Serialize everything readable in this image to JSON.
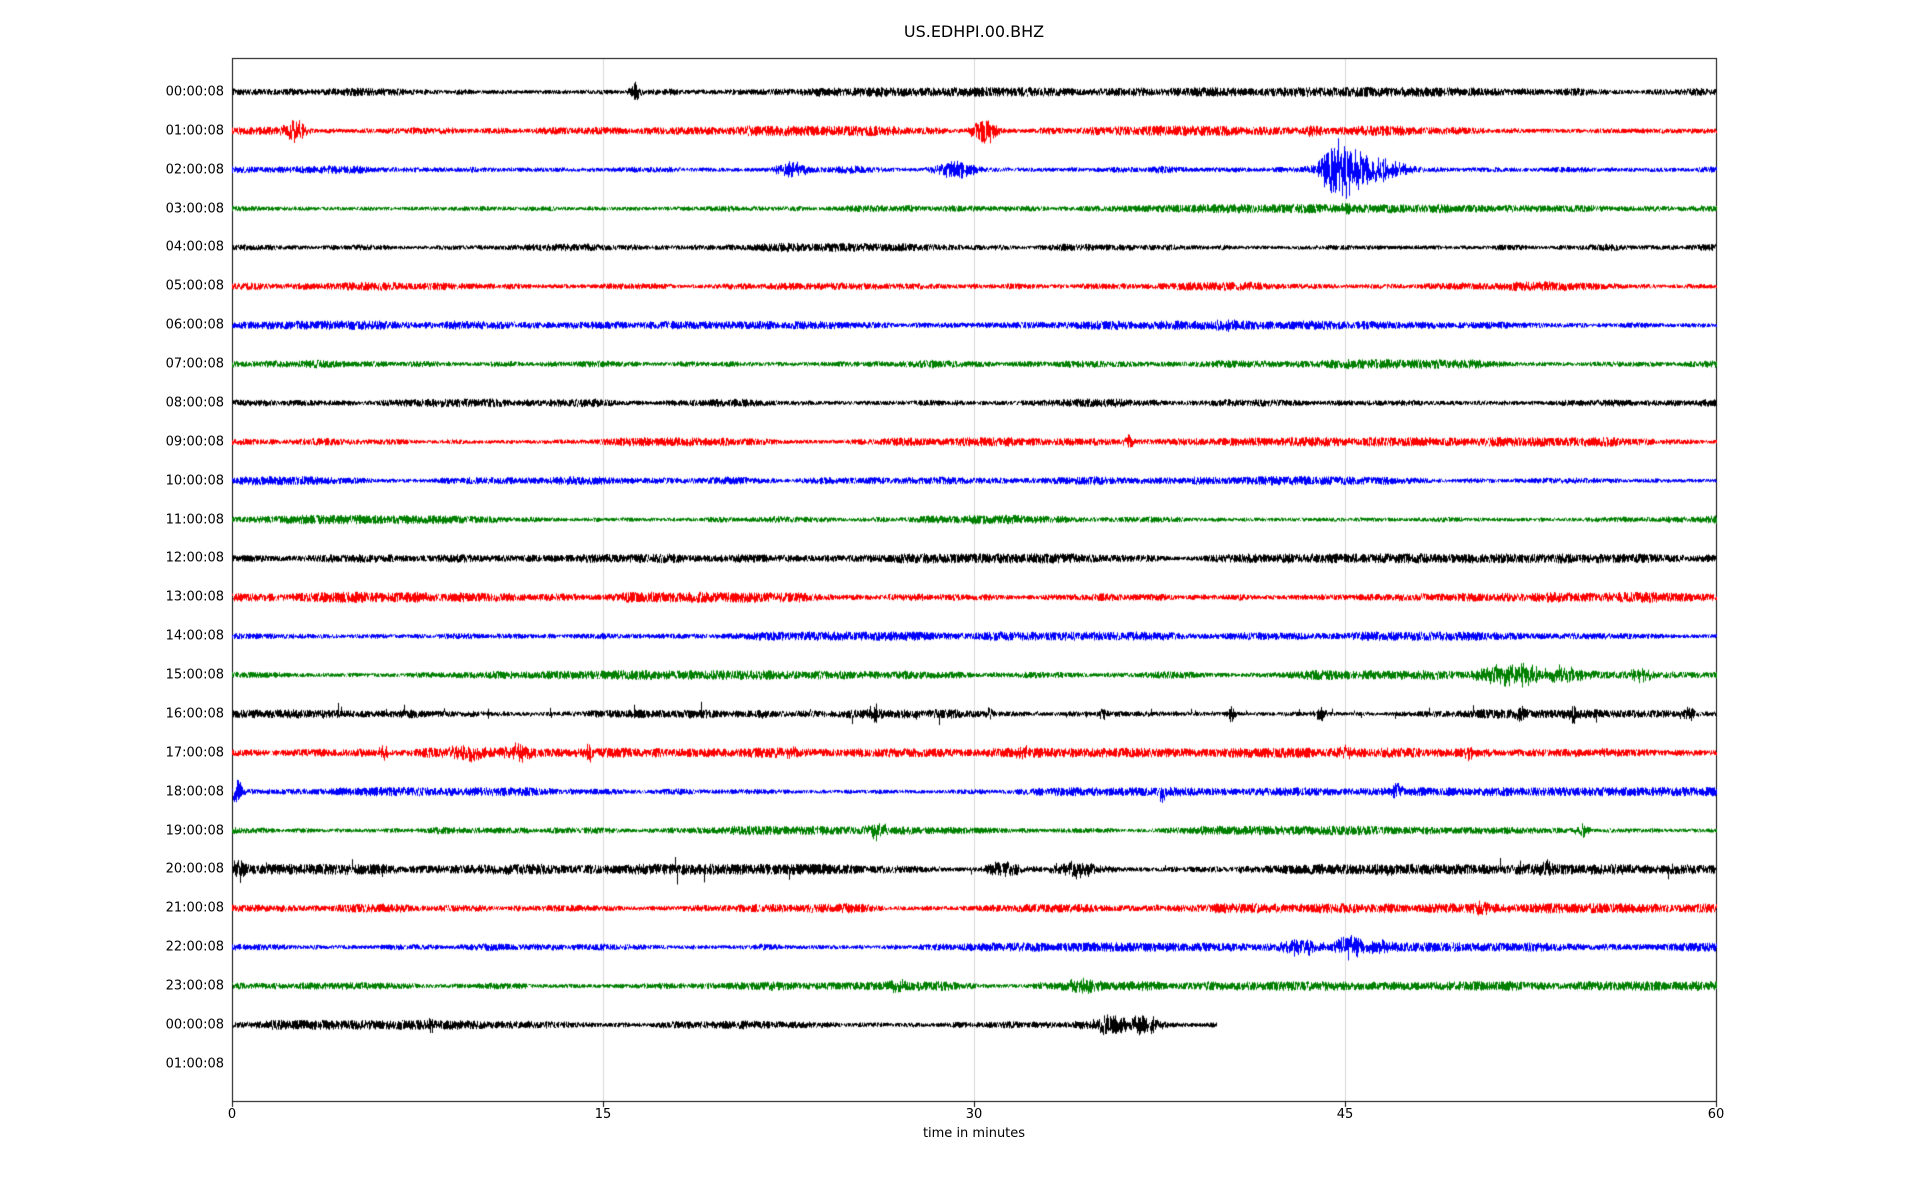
{
  "chart_data": {
    "type": "line",
    "subtype": "seismogram-helicorder",
    "title": "US.EDHPI.00.BHZ",
    "xlabel": "time in minutes",
    "xlim": [
      0,
      60
    ],
    "xticks": [
      0,
      15,
      30,
      45,
      60
    ],
    "grid": "vertical-light",
    "frame_color": "#000000",
    "grid_color": "#d9d9d9",
    "trace_color_cycle": [
      "#000000",
      "#ff0000",
      "#0000ff",
      "#008000"
    ],
    "rows": [
      {
        "label": "00:00:08",
        "color": "#000000",
        "noise": 3.4,
        "duration": 60,
        "spike_rate": 0,
        "events": [
          {
            "t": 16.3,
            "amp": 9,
            "dur": 0.25
          }
        ]
      },
      {
        "label": "01:00:08",
        "color": "#ff0000",
        "noise": 3.6,
        "duration": 60,
        "spike_rate": 0,
        "events": [
          {
            "t": 2.5,
            "amp": 9,
            "dur": 0.5
          },
          {
            "t": 30.4,
            "amp": 13,
            "dur": 0.5
          },
          {
            "t": 43.7,
            "amp": 5,
            "dur": 0.3
          }
        ]
      },
      {
        "label": "02:00:08",
        "color": "#0000ff",
        "noise": 3.4,
        "duration": 60,
        "spike_rate": 0,
        "events": [
          {
            "t": 22.6,
            "amp": 7,
            "dur": 0.6
          },
          {
            "t": 29.3,
            "amp": 8,
            "dur": 0.9
          },
          {
            "t": 44.7,
            "amp": 26,
            "dur": 0.7
          },
          {
            "t": 45.6,
            "amp": 16,
            "dur": 1.1
          },
          {
            "t": 47.0,
            "amp": 6,
            "dur": 0.8
          }
        ]
      },
      {
        "label": "03:00:08",
        "color": "#008000",
        "noise": 3.2,
        "duration": 60,
        "spike_rate": 0,
        "events": [
          {
            "t": 45.1,
            "amp": 4,
            "dur": 0.3
          }
        ]
      },
      {
        "label": "04:00:08",
        "color": "#000000",
        "noise": 3.2,
        "duration": 60,
        "spike_rate": 0,
        "events": []
      },
      {
        "label": "05:00:08",
        "color": "#ff0000",
        "noise": 3.4,
        "duration": 60,
        "spike_rate": 0,
        "events": []
      },
      {
        "label": "06:00:08",
        "color": "#0000ff",
        "noise": 3.2,
        "duration": 60,
        "spike_rate": 0,
        "events": [
          {
            "t": 40.0,
            "amp": 4,
            "dur": 0.5
          }
        ]
      },
      {
        "label": "07:00:08",
        "color": "#008000",
        "noise": 3.4,
        "duration": 60,
        "spike_rate": 0,
        "events": []
      },
      {
        "label": "08:00:08",
        "color": "#000000",
        "noise": 3.6,
        "duration": 60,
        "spike_rate": 0,
        "events": []
      },
      {
        "label": "09:00:08",
        "color": "#ff0000",
        "noise": 3.3,
        "duration": 60,
        "spike_rate": 0,
        "events": [
          {
            "t": 36.3,
            "amp": 8,
            "dur": 0.2
          }
        ]
      },
      {
        "label": "10:00:08",
        "color": "#0000ff",
        "noise": 3.2,
        "duration": 60,
        "spike_rate": 0,
        "events": []
      },
      {
        "label": "11:00:08",
        "color": "#008000",
        "noise": 3.2,
        "duration": 60,
        "spike_rate": 0,
        "events": []
      },
      {
        "label": "12:00:08",
        "color": "#000000",
        "noise": 3.4,
        "duration": 60,
        "spike_rate": 0,
        "events": []
      },
      {
        "label": "13:00:08",
        "color": "#ff0000",
        "noise": 3.8,
        "duration": 60,
        "spike_rate": 0,
        "events": []
      },
      {
        "label": "14:00:08",
        "color": "#0000ff",
        "noise": 3.2,
        "duration": 60,
        "spike_rate": 0,
        "events": []
      },
      {
        "label": "15:00:08",
        "color": "#008000",
        "noise": 3.4,
        "duration": 60,
        "spike_rate": 0,
        "events": [
          {
            "t": 51.3,
            "amp": 9,
            "dur": 0.9
          },
          {
            "t": 52.3,
            "amp": 8,
            "dur": 0.7
          },
          {
            "t": 53.8,
            "amp": 6,
            "dur": 0.8
          },
          {
            "t": 57.0,
            "amp": 5,
            "dur": 0.5
          }
        ]
      },
      {
        "label": "16:00:08",
        "color": "#000000",
        "noise": 3.3,
        "duration": 60,
        "spike_rate": 0.012,
        "events": [
          {
            "t": 26.0,
            "amp": 7,
            "dur": 0.15
          },
          {
            "t": 30.6,
            "amp": 5,
            "dur": 0.15
          },
          {
            "t": 35.2,
            "amp": 5,
            "dur": 0.15
          },
          {
            "t": 40.4,
            "amp": 9,
            "dur": 0.12
          },
          {
            "t": 44.0,
            "amp": 6,
            "dur": 0.2
          },
          {
            "t": 52.1,
            "amp": 9,
            "dur": 0.15
          },
          {
            "t": 54.2,
            "amp": 8,
            "dur": 0.15
          },
          {
            "t": 58.9,
            "amp": 8,
            "dur": 0.3
          }
        ]
      },
      {
        "label": "17:00:08",
        "color": "#ff0000",
        "noise": 3.5,
        "duration": 60,
        "spike_rate": 0,
        "events": [
          {
            "t": 6.1,
            "amp": 6,
            "dur": 0.2
          },
          {
            "t": 9.6,
            "amp": 6,
            "dur": 0.7
          },
          {
            "t": 11.6,
            "amp": 7,
            "dur": 0.5
          },
          {
            "t": 14.4,
            "amp": 8,
            "dur": 0.15
          },
          {
            "t": 22.5,
            "amp": 4,
            "dur": 0.3
          },
          {
            "t": 32.0,
            "amp": 5,
            "dur": 0.25
          },
          {
            "t": 45.0,
            "amp": 7,
            "dur": 0.3
          },
          {
            "t": 50.0,
            "amp": 5,
            "dur": 0.25
          },
          {
            "t": 55.5,
            "amp": 4,
            "dur": 0.2
          }
        ]
      },
      {
        "label": "18:00:08",
        "color": "#0000ff",
        "noise": 3.2,
        "duration": 60,
        "spike_rate": 0,
        "events": [
          {
            "t": 0.15,
            "amp": 11,
            "dur": 0.25
          },
          {
            "t": 37.6,
            "amp": 8,
            "dur": 0.15
          },
          {
            "t": 47.1,
            "amp": 7,
            "dur": 0.2
          }
        ]
      },
      {
        "label": "19:00:08",
        "color": "#008000",
        "noise": 3.3,
        "duration": 60,
        "spike_rate": 0,
        "events": [
          {
            "t": 26.1,
            "amp": 8,
            "dur": 0.4
          },
          {
            "t": 54.6,
            "amp": 6,
            "dur": 0.3
          }
        ]
      },
      {
        "label": "20:00:08",
        "color": "#000000",
        "noise": 3.8,
        "duration": 60,
        "spike_rate": 0.006,
        "events": [
          {
            "t": 0.3,
            "amp": 12,
            "dur": 0.25
          },
          {
            "t": 31.2,
            "amp": 8,
            "dur": 0.7
          },
          {
            "t": 34.2,
            "amp": 8,
            "dur": 0.9
          },
          {
            "t": 53.2,
            "amp": 7,
            "dur": 0.25
          }
        ]
      },
      {
        "label": "21:00:08",
        "color": "#ff0000",
        "noise": 3.5,
        "duration": 60,
        "spike_rate": 0,
        "events": [
          {
            "t": 50.5,
            "amp": 4,
            "dur": 0.4
          }
        ]
      },
      {
        "label": "22:00:08",
        "color": "#0000ff",
        "noise": 3.3,
        "duration": 60,
        "spike_rate": 0,
        "events": [
          {
            "t": 43.2,
            "amp": 8,
            "dur": 0.7
          },
          {
            "t": 45.2,
            "amp": 11,
            "dur": 0.5
          },
          {
            "t": 46.3,
            "amp": 5,
            "dur": 0.5
          }
        ]
      },
      {
        "label": "23:00:08",
        "color": "#008000",
        "noise": 3.4,
        "duration": 60,
        "spike_rate": 0,
        "events": [
          {
            "t": 26.9,
            "amp": 4,
            "dur": 0.3
          },
          {
            "t": 34.4,
            "amp": 5,
            "dur": 0.6
          }
        ]
      },
      {
        "label": "00:00:08",
        "color": "#000000",
        "noise": 3.4,
        "duration": 39.8,
        "spike_rate": 0,
        "events": [
          {
            "t": 8.0,
            "amp": 5,
            "dur": 0.2
          },
          {
            "t": 35.6,
            "amp": 10,
            "dur": 0.9
          },
          {
            "t": 36.9,
            "amp": 9,
            "dur": 0.6
          }
        ]
      },
      {
        "label": "01:00:08",
        "color": "#ff0000",
        "noise": 0,
        "duration": 0,
        "spike_rate": 0,
        "events": []
      }
    ]
  }
}
